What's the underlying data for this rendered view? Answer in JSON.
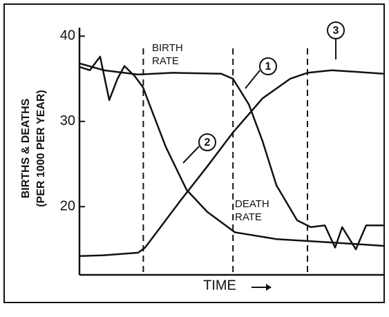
{
  "chart_data": {
    "type": "line",
    "ylabel": [
      "BIRTHS & DEATHS",
      "(PER 1000 PER YEAR)"
    ],
    "xlabel": "TIME",
    "xlim": [
      0,
      100
    ],
    "xticks": [],
    "ylim": [
      12,
      41
    ],
    "yticks": [
      20,
      30,
      40
    ],
    "stage_boundaries": [
      21,
      50.5,
      75
    ],
    "color": "#111111",
    "series": [
      {
        "name": "DEATH RATE",
        "x": [
          0,
          3.4,
          6.8,
          9.8,
          12.5,
          14.8,
          18.2,
          20.9,
          22.7,
          28.4,
          35.2,
          42,
          51.1,
          64.8,
          83,
          100
        ],
        "values": [
          36.4,
          36,
          37.6,
          32.5,
          35,
          36.5,
          35.3,
          34,
          32.3,
          27,
          22,
          19.4,
          17,
          16.2,
          15.8,
          15.4
        ]
      },
      {
        "name": "BIRTH RATE",
        "x": [
          0,
          8,
          19.3,
          30.7,
          46.6,
          50.5,
          55.7,
          60.2,
          64.8,
          71.6,
          76.1,
          80.7,
          84.1,
          86.4,
          90.9,
          94.3,
          100
        ],
        "values": [
          36.8,
          36,
          35.5,
          35.7,
          35.6,
          35,
          32,
          27.7,
          22.5,
          18.4,
          17.6,
          17.8,
          15.2,
          17.6,
          15,
          17.8,
          17.8
        ]
      },
      {
        "x": [
          0,
          8,
          19.3,
          21.6,
          33,
          42,
          50.5,
          60.2,
          69.3,
          75,
          83,
          100
        ],
        "values": [
          14.2,
          14.3,
          14.6,
          15.2,
          20.6,
          24.7,
          28.7,
          32.7,
          35,
          35.7,
          36,
          35.6
        ]
      }
    ],
    "annotations": [
      "1",
      "2",
      "3"
    ]
  }
}
